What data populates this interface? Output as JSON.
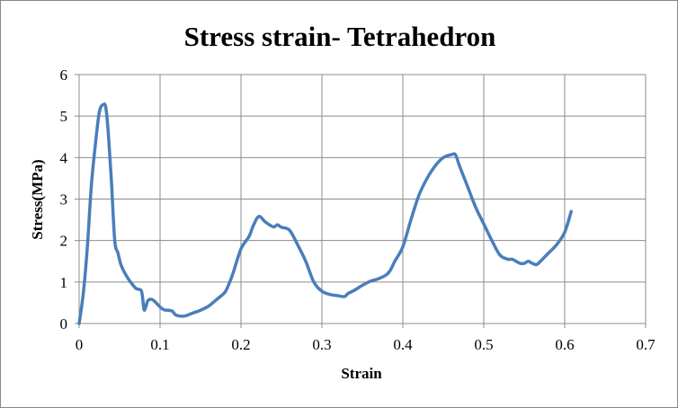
{
  "chart_data": {
    "type": "line",
    "title": "Stress strain- Tetrahedron",
    "xlabel": "Strain",
    "ylabel": "Stress(MPa)",
    "xlim": [
      0,
      0.7
    ],
    "ylim": [
      0,
      6
    ],
    "x_ticks": [
      "0",
      "0.1",
      "0.2",
      "0.3",
      "0.4",
      "0.5",
      "0.6",
      "0.7"
    ],
    "y_ticks": [
      "0",
      "1",
      "2",
      "3",
      "4",
      "5",
      "6"
    ],
    "grid": true,
    "legend": "none",
    "series_color": "#4a7ebb",
    "series": [
      {
        "x": [
          0,
          0.005,
          0.01,
          0.015,
          0.02,
          0.025,
          0.03,
          0.033,
          0.036,
          0.04,
          0.044,
          0.048,
          0.052,
          0.06,
          0.07,
          0.077,
          0.08,
          0.082,
          0.085,
          0.09,
          0.095,
          0.1,
          0.105,
          0.11,
          0.115,
          0.12,
          0.13,
          0.14,
          0.15,
          0.16,
          0.17,
          0.18,
          0.185,
          0.19,
          0.2,
          0.21,
          0.215,
          0.222,
          0.23,
          0.24,
          0.245,
          0.25,
          0.26,
          0.27,
          0.28,
          0.29,
          0.3,
          0.31,
          0.32,
          0.328,
          0.332,
          0.34,
          0.35,
          0.36,
          0.37,
          0.38,
          0.385,
          0.39,
          0.4,
          0.41,
          0.42,
          0.43,
          0.44,
          0.45,
          0.46,
          0.465,
          0.47,
          0.48,
          0.49,
          0.5,
          0.51,
          0.52,
          0.53,
          0.535,
          0.54,
          0.545,
          0.55,
          0.555,
          0.56,
          0.565,
          0.57,
          0.58,
          0.59,
          0.6,
          0.608
        ],
        "y": [
          0,
          0.7,
          1.8,
          3.3,
          4.3,
          5.1,
          5.28,
          5.2,
          4.6,
          3.4,
          2.0,
          1.7,
          1.4,
          1.1,
          0.85,
          0.78,
          0.35,
          0.38,
          0.55,
          0.58,
          0.5,
          0.4,
          0.33,
          0.32,
          0.3,
          0.2,
          0.18,
          0.25,
          0.32,
          0.42,
          0.58,
          0.75,
          0.95,
          1.2,
          1.8,
          2.1,
          2.35,
          2.58,
          2.45,
          2.33,
          2.38,
          2.32,
          2.25,
          1.9,
          1.5,
          1.0,
          0.78,
          0.7,
          0.67,
          0.65,
          0.72,
          0.8,
          0.92,
          1.02,
          1.08,
          1.18,
          1.3,
          1.5,
          1.85,
          2.5,
          3.1,
          3.5,
          3.8,
          4.0,
          4.07,
          4.07,
          3.8,
          3.3,
          2.8,
          2.4,
          2.0,
          1.65,
          1.55,
          1.55,
          1.5,
          1.45,
          1.45,
          1.5,
          1.45,
          1.42,
          1.5,
          1.7,
          1.9,
          2.2,
          2.7
        ]
      }
    ]
  }
}
